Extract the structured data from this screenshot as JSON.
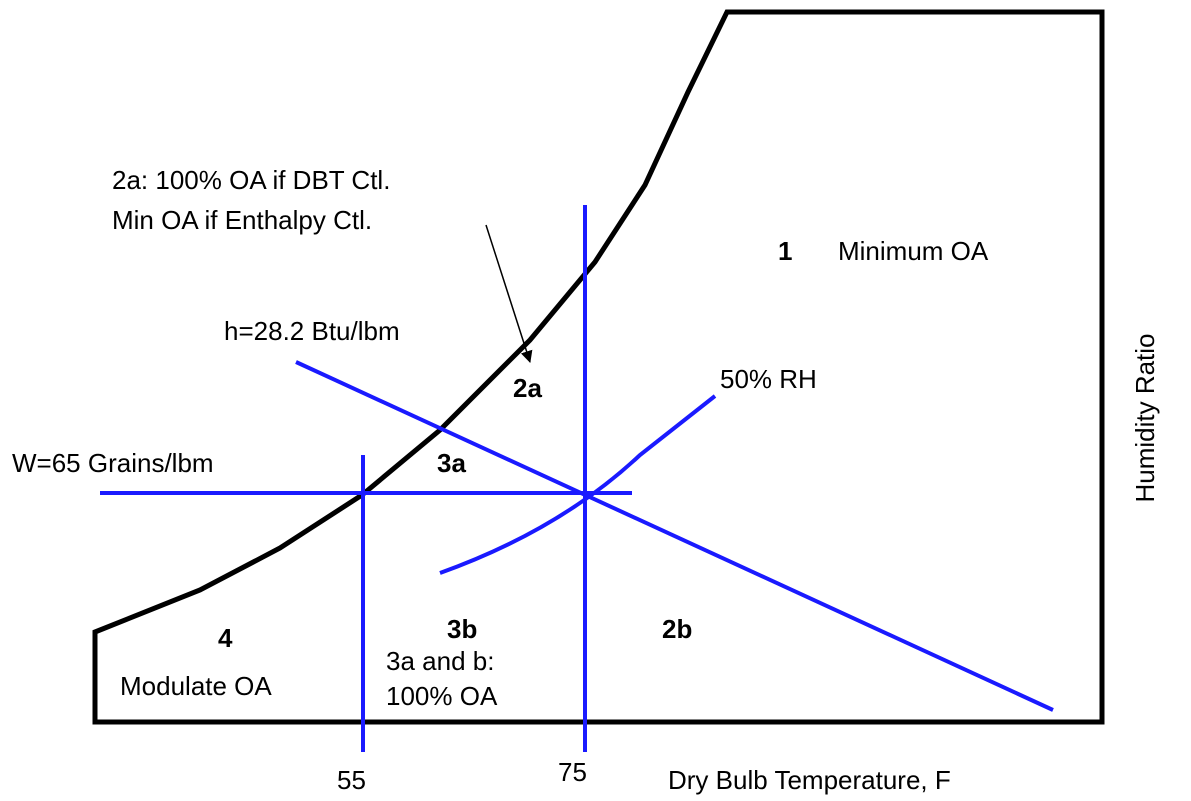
{
  "colors": {
    "boundary": "#000000",
    "control_lines": "#1a1aff",
    "text": "#000000"
  },
  "axes": {
    "x_label": "Dry Bulb Temperature, F",
    "y_label": "Humidity Ratio",
    "x_ticks": [
      "55",
      "75"
    ]
  },
  "lines": {
    "enthalpy": "h=28.2 Btu/lbm",
    "humidity": "W=65 Grains/lbm",
    "rh": "50% RH"
  },
  "note_2a": {
    "line1": "2a: 100% OA if DBT Ctl.",
    "line2": "Min OA if Enthalpy Ctl."
  },
  "regions": {
    "r1": "1",
    "r1_desc": "Minimum OA",
    "r2a": "2a",
    "r2b": "2b",
    "r3a": "3a",
    "r3b": "3b",
    "r3_note_line1": "3a and b:",
    "r3_note_line2": "100% OA",
    "r4": "4",
    "r4_desc": "Modulate OA"
  }
}
